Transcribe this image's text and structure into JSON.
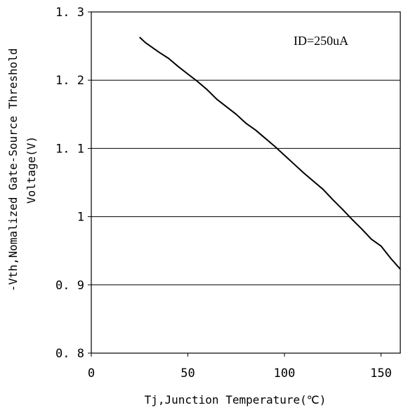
{
  "chart_data": {
    "type": "line",
    "xlabel": "Tj,Junction Temperature(℃)",
    "ylabel_lines": [
      "-Vth,Nomalized Gate-Source Threshold",
      "Voltage(V)"
    ],
    "annotation": "ID=250uA",
    "xlim": [
      0,
      160
    ],
    "ylim": [
      0.8,
      1.3
    ],
    "x_ticks": [
      0,
      50,
      100,
      150
    ],
    "x_tick_labels": [
      "0",
      "50",
      "100",
      "150"
    ],
    "y_ticks": [
      0.8,
      0.9,
      1.0,
      1.1,
      1.2,
      1.3
    ],
    "y_tick_labels": [
      "0. 8",
      "0. 9",
      "1",
      "1. 1",
      "1. 2",
      "1. 3"
    ],
    "grid": "horizontal",
    "series": [
      {
        "x": [
          25,
          28,
          35,
          40,
          45,
          50,
          55,
          60,
          65,
          70,
          75,
          80,
          85,
          90,
          95,
          100,
          105,
          110,
          115,
          120,
          125,
          130,
          135,
          140,
          145,
          150,
          155,
          160
        ],
        "y": [
          1.263,
          1.255,
          1.241,
          1.232,
          1.22,
          1.209,
          1.198,
          1.186,
          1.172,
          1.161,
          1.15,
          1.137,
          1.127,
          1.115,
          1.103,
          1.09,
          1.077,
          1.064,
          1.052,
          1.04,
          1.025,
          1.011,
          0.996,
          0.982,
          0.967,
          0.957,
          0.939,
          0.923
        ]
      }
    ]
  }
}
